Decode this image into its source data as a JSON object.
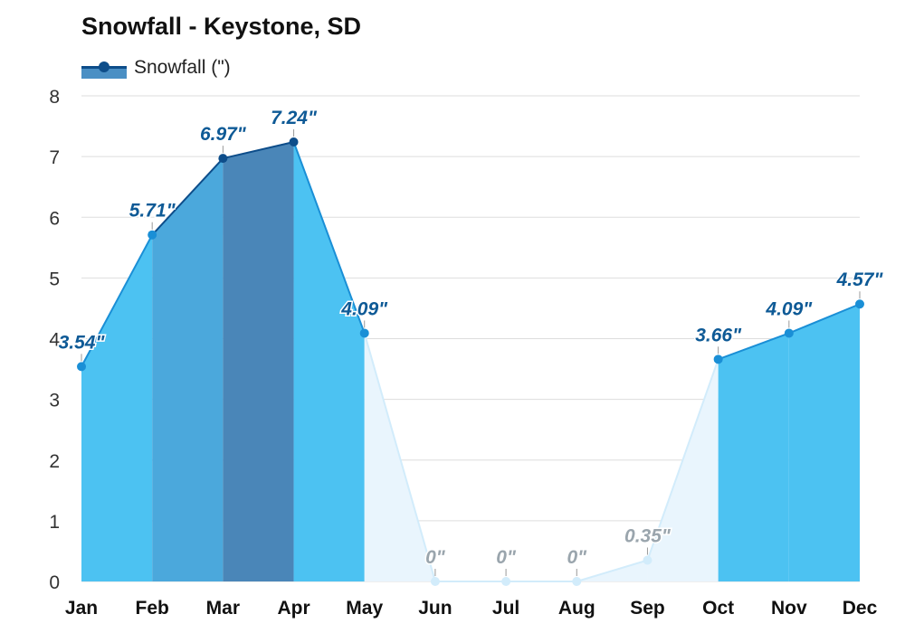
{
  "title": "Snowfall - Keystone, SD",
  "legend": {
    "label": "Snowfall (\")"
  },
  "chart_data": {
    "type": "area",
    "title": "Snowfall - Keystone, SD",
    "categories": [
      "Jan",
      "Feb",
      "Mar",
      "Apr",
      "May",
      "Jun",
      "Jul",
      "Aug",
      "Sep",
      "Oct",
      "Nov",
      "Dec"
    ],
    "series": [
      {
        "name": "Snowfall (\")",
        "values": [
          3.54,
          5.71,
          6.97,
          7.24,
          4.09,
          0,
          0,
          0,
          0.35,
          3.66,
          4.09,
          4.57
        ],
        "labels": [
          "3.54\"",
          "5.71\"",
          "6.97\"",
          "7.24\"",
          "4.09\"",
          "0\"",
          "0\"",
          "0\"",
          "0.35\"",
          "3.66\"",
          "4.09\"",
          "4.57\""
        ]
      }
    ],
    "ylim": [
      0,
      8
    ],
    "yticks": [
      "0",
      "1",
      "2",
      "3",
      "4",
      "5",
      "6",
      "7",
      "8"
    ],
    "grid": true,
    "legend_position": "top-left"
  },
  "colors": {
    "peak": "#4a86b8",
    "high": "#4ba8dc",
    "medium": "#4cc2f2",
    "light": "#e9f5fd",
    "line_dark": "#0d4d8a",
    "line_mid": "#1a8fd6",
    "line_light": "#d2ecfb",
    "label_dark": "#0e5a96",
    "label_grey": "#9aa5ad"
  }
}
